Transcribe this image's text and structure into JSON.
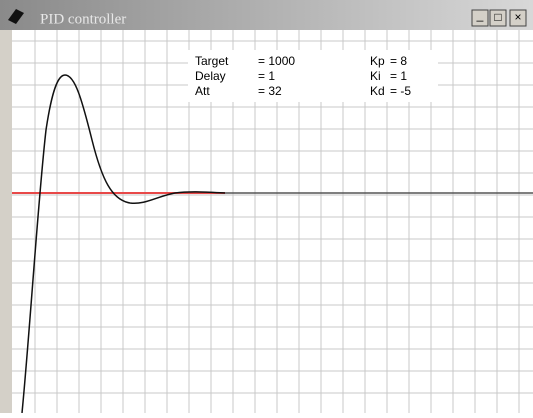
{
  "window": {
    "title": "PID controller",
    "buttons": [
      "_",
      "□",
      "×"
    ]
  },
  "params": {
    "left": [
      {
        "label": "Target",
        "value": "= 1000"
      },
      {
        "label": "Delay",
        "value": "= 1"
      },
      {
        "label": "Att",
        "value": "= 32"
      }
    ],
    "right": [
      {
        "label": "Kp",
        "value": "= 8"
      },
      {
        "label": "Ki",
        "value": "= 1"
      },
      {
        "label": "Kd",
        "value": "= -5"
      }
    ]
  }
}
